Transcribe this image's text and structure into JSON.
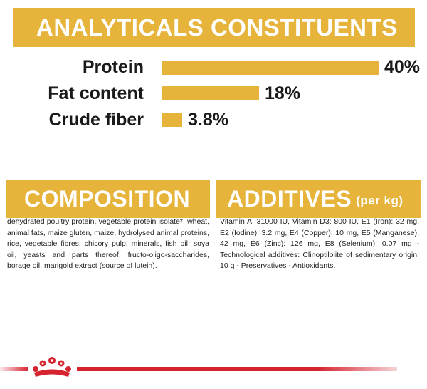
{
  "analytics": {
    "title": "ANALYTICALS CONSTITUENTS",
    "rows": [
      {
        "label": "Protein",
        "value": "40%",
        "percent": 40
      },
      {
        "label": "Fat content",
        "value": "18%",
        "percent": 18
      },
      {
        "label": "Crude fiber",
        "value": "3.8%",
        "percent": 3.8
      }
    ],
    "bar_color": "#e6b33b"
  },
  "composition": {
    "title": "COMPOSITION",
    "text": "dehydrated poultry protein, vegetable protein isolate*, wheat, animal fats, maize gluten, maize, hydrolysed animal proteins, rice, vegetable fibres, chicory pulp, minerals, fish oil, soya oil, yeasts and parts thereof, fructo-oligo-saccharides, borage oil, marigold extract (source of lutein)."
  },
  "additives": {
    "title": "ADDITIVES",
    "suffix": "(per kg)",
    "text": "Vitamin A: 31000 IU, Vitamin D3: 800 IU, E1 (Iron): 32 mg, E2 (Iodine): 3.2 mg, E4 (Copper): 10 mg, E5 (Manganese): 42 mg, E6 (Zinc): 126 mg, E8 (Selenium): 0.07 mg -Technological additives: Clinoptilolite of sedimentary origin: 10 g - Preservatives - Antioxidants."
  },
  "colors": {
    "accent": "#e6b33b",
    "brand_red": "#d5232f"
  },
  "footer": {
    "logo_icon": "royal-canin-crown-icon"
  }
}
